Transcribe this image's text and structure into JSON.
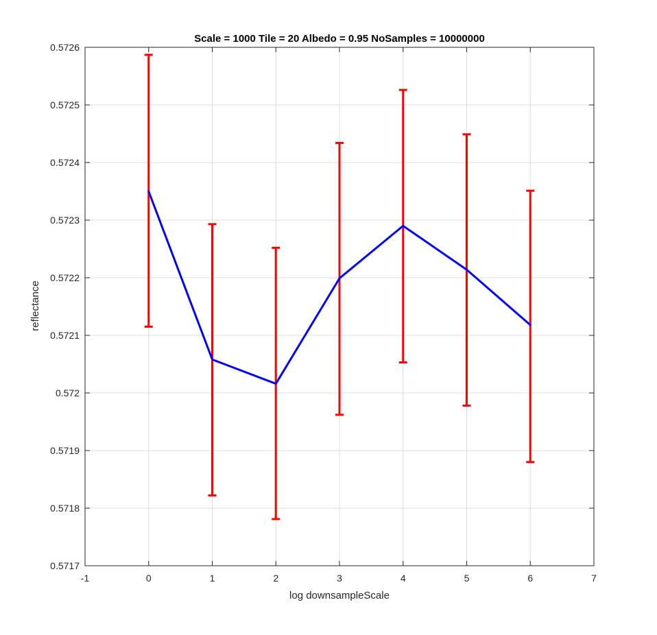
{
  "chart_data": {
    "type": "line",
    "title": "Scale = 1000 Tile = 20 Albedo = 0.95 NoSamples = 10000000",
    "xlabel": "log downsampleScale",
    "ylabel": "reflectance",
    "xlim": [
      -1,
      7
    ],
    "ylim": [
      0.5717,
      0.5726
    ],
    "xticks": [
      -1,
      0,
      1,
      2,
      3,
      4,
      5,
      6,
      7
    ],
    "xtick_labels": [
      "-1",
      "0",
      "1",
      "2",
      "3",
      "4",
      "5",
      "6",
      "7"
    ],
    "yticks": [
      0.5717,
      0.5718,
      0.5719,
      0.572,
      0.5721,
      0.5722,
      0.5723,
      0.5724,
      0.5725,
      0.5726
    ],
    "ytick_labels": [
      "0.5717",
      "0.5718",
      "0.5719",
      "0.572",
      "0.5721",
      "0.5722",
      "0.5723",
      "0.5724",
      "0.5725",
      "0.5726"
    ],
    "grid": true,
    "x": [
      0,
      1,
      2,
      3,
      4,
      5,
      6
    ],
    "series": [
      {
        "values": [
          0.57235,
          0.572058,
          0.572016,
          0.572199,
          0.57229,
          0.572214,
          0.572118
        ],
        "color": "#0000ff"
      }
    ],
    "error_bars": {
      "color": "#ff0000",
      "lower": [
        0.572115,
        0.571822,
        0.571781,
        0.571962,
        0.572053,
        0.571978,
        0.57188
      ],
      "upper": [
        0.572587,
        0.572293,
        0.572252,
        0.572434,
        0.572526,
        0.572449,
        0.572351
      ]
    }
  }
}
